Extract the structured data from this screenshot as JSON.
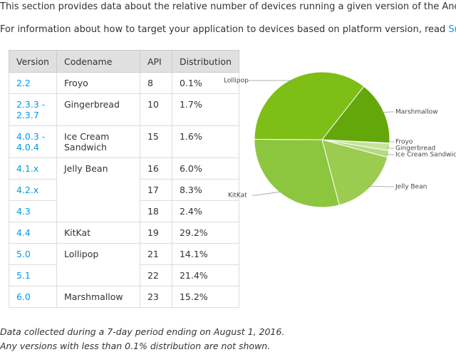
{
  "intro": [
    {
      "text": "This section provides data about the relative number of devices running a given version of the Android platform."
    },
    {
      "text": "For information about how to target your application to devices based on platform version, read ",
      "link": "Supporting Differen"
    }
  ],
  "table": {
    "header": [
      "Version",
      "Codename",
      "API",
      "Distribution"
    ],
    "rows": [
      {
        "version": "2.2",
        "codename": "Froyo",
        "api": 8,
        "distribution": "0.1%"
      },
      {
        "version": "2.3.3 - 2.3.7",
        "codename": "Gingerbread",
        "api": 10,
        "distribution": "1.7%"
      },
      {
        "version": "4.0.3 - 4.0.4",
        "codename": "Ice Cream Sandwich",
        "api": 15,
        "distribution": "1.6%"
      },
      {
        "version": "4.1.x",
        "codename": "Jelly Bean",
        "api": 16,
        "distribution": "6.0%"
      },
      {
        "version": "4.2.x",
        "api": 17,
        "distribution": "8.3%"
      },
      {
        "version": "4.3",
        "api": 18,
        "distribution": "2.4%"
      },
      {
        "version": "4.4",
        "codename": "KitKat",
        "api": 19,
        "distribution": "29.2%"
      },
      {
        "version": "5.0",
        "codename": "Lollipop",
        "api": 21,
        "distribution": "14.1%"
      },
      {
        "version": "5.1",
        "api": 22,
        "distribution": "21.4%"
      },
      {
        "version": "6.0",
        "codename": "Marshmallow",
        "api": 23,
        "distribution": "15.2%"
      }
    ]
  },
  "chart_data": {
    "type": "pie",
    "categories": [
      "Froyo",
      "Gingerbread",
      "Ice Cream Sandwich",
      "Jelly Bean",
      "KitKat",
      "Lollipop",
      "Marshmallow"
    ],
    "values": [
      0.1,
      1.7,
      1.6,
      16.7,
      29.2,
      35.5,
      15.2
    ],
    "colors": [
      "#d3e9b0",
      "#c6e39a",
      "#b6da83",
      "#9bcc50",
      "#8cc63f",
      "#7dbe17",
      "#64a70b"
    ]
  },
  "notes": [
    "Data collected during a 7-day period ending on August 1, 2016.",
    "Any versions with less than 0.1% distribution are not shown."
  ]
}
